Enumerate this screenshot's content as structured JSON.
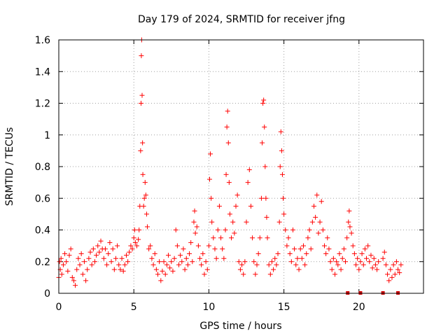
{
  "chart_data": {
    "type": "scatter",
    "title": "Day 179 of 2024, SRMTID for receiver jfng",
    "xlabel": "GPS time / hours",
    "ylabel": "SRMTID / TECUs",
    "xlim": [
      0,
      24.3
    ],
    "ylim": [
      0,
      1.6
    ],
    "grid": true,
    "marker": "plus",
    "color": "#ff0000",
    "xticks": [
      "0",
      "5",
      "10",
      "15",
      "20"
    ],
    "xtick_values": [
      0,
      5,
      10,
      15,
      20
    ],
    "yticks": [
      "0",
      "0.2",
      "0.4",
      "0.6",
      "0.8",
      "1",
      "1.2",
      "1.4",
      "1.6"
    ],
    "ytick_values": [
      0,
      0.2,
      0.4,
      0.6,
      0.8,
      1.0,
      1.2,
      1.4,
      1.6
    ],
    "baseline_markers_x": [
      19.25,
      20.1,
      21.6,
      22.6
    ],
    "series": [
      {
        "name": "SRMTID",
        "points": [
          [
            0.0,
            0.1
          ],
          [
            0.05,
            0.2
          ],
          [
            0.1,
            0.15
          ],
          [
            0.15,
            0.22
          ],
          [
            0.2,
            0.12
          ],
          [
            0.3,
            0.18
          ],
          [
            0.4,
            0.25
          ],
          [
            0.5,
            0.2
          ],
          [
            0.6,
            0.14
          ],
          [
            0.7,
            0.24
          ],
          [
            0.8,
            0.28
          ],
          [
            0.9,
            0.1
          ],
          [
            1.0,
            0.08
          ],
          [
            1.1,
            0.05
          ],
          [
            1.2,
            0.15
          ],
          [
            1.3,
            0.22
          ],
          [
            1.4,
            0.18
          ],
          [
            1.5,
            0.25
          ],
          [
            1.6,
            0.12
          ],
          [
            1.7,
            0.2
          ],
          [
            1.8,
            0.08
          ],
          [
            1.9,
            0.15
          ],
          [
            2.0,
            0.22
          ],
          [
            2.1,
            0.26
          ],
          [
            2.2,
            0.18
          ],
          [
            2.3,
            0.28
          ],
          [
            2.4,
            0.2
          ],
          [
            2.5,
            0.24
          ],
          [
            2.6,
            0.3
          ],
          [
            2.7,
            0.26
          ],
          [
            2.8,
            0.33
          ],
          [
            2.9,
            0.28
          ],
          [
            3.0,
            0.22
          ],
          [
            3.1,
            0.28
          ],
          [
            3.2,
            0.18
          ],
          [
            3.3,
            0.25
          ],
          [
            3.4,
            0.32
          ],
          [
            3.5,
            0.2
          ],
          [
            3.6,
            0.28
          ],
          [
            3.7,
            0.15
          ],
          [
            3.8,
            0.22
          ],
          [
            3.9,
            0.3
          ],
          [
            4.0,
            0.18
          ],
          [
            4.1,
            0.15
          ],
          [
            4.2,
            0.22
          ],
          [
            4.3,
            0.14
          ],
          [
            4.4,
            0.18
          ],
          [
            4.5,
            0.24
          ],
          [
            4.6,
            0.2
          ],
          [
            4.7,
            0.26
          ],
          [
            4.8,
            0.3
          ],
          [
            4.9,
            0.28
          ],
          [
            5.0,
            0.35
          ],
          [
            5.05,
            0.4
          ],
          [
            5.1,
            0.32
          ],
          [
            5.2,
            0.3
          ],
          [
            5.3,
            0.34
          ],
          [
            5.35,
            0.4
          ],
          [
            5.4,
            0.55
          ],
          [
            5.45,
            0.9
          ],
          [
            5.48,
            1.2
          ],
          [
            5.5,
            1.5
          ],
          [
            5.52,
            1.6
          ],
          [
            5.55,
            1.25
          ],
          [
            5.58,
            0.95
          ],
          [
            5.6,
            0.75
          ],
          [
            5.65,
            0.55
          ],
          [
            5.7,
            0.6
          ],
          [
            5.75,
            0.7
          ],
          [
            5.8,
            0.62
          ],
          [
            5.85,
            0.5
          ],
          [
            5.9,
            0.42
          ],
          [
            6.0,
            0.28
          ],
          [
            6.1,
            0.3
          ],
          [
            6.2,
            0.22
          ],
          [
            6.3,
            0.18
          ],
          [
            6.4,
            0.25
          ],
          [
            6.5,
            0.15
          ],
          [
            6.6,
            0.12
          ],
          [
            6.7,
            0.2
          ],
          [
            6.8,
            0.08
          ],
          [
            6.9,
            0.14
          ],
          [
            7.0,
            0.2
          ],
          [
            7.1,
            0.12
          ],
          [
            7.2,
            0.18
          ],
          [
            7.3,
            0.24
          ],
          [
            7.4,
            0.16
          ],
          [
            7.5,
            0.2
          ],
          [
            7.6,
            0.14
          ],
          [
            7.7,
            0.22
          ],
          [
            7.8,
            0.4
          ],
          [
            7.9,
            0.3
          ],
          [
            8.0,
            0.18
          ],
          [
            8.1,
            0.24
          ],
          [
            8.2,
            0.2
          ],
          [
            8.3,
            0.28
          ],
          [
            8.4,
            0.15
          ],
          [
            8.5,
            0.22
          ],
          [
            8.6,
            0.18
          ],
          [
            8.7,
            0.25
          ],
          [
            8.8,
            0.32
          ],
          [
            8.9,
            0.2
          ],
          [
            9.0,
            0.45
          ],
          [
            9.05,
            0.52
          ],
          [
            9.1,
            0.38
          ],
          [
            9.2,
            0.42
          ],
          [
            9.3,
            0.3
          ],
          [
            9.4,
            0.22
          ],
          [
            9.5,
            0.18
          ],
          [
            9.6,
            0.25
          ],
          [
            9.7,
            0.12
          ],
          [
            9.8,
            0.2
          ],
          [
            9.9,
            0.15
          ],
          [
            10.0,
            0.3
          ],
          [
            10.05,
            0.72
          ],
          [
            10.1,
            0.88
          ],
          [
            10.15,
            0.6
          ],
          [
            10.2,
            0.45
          ],
          [
            10.3,
            0.35
          ],
          [
            10.4,
            0.28
          ],
          [
            10.5,
            0.22
          ],
          [
            10.6,
            0.4
          ],
          [
            10.7,
            0.55
          ],
          [
            10.8,
            0.35
          ],
          [
            10.9,
            0.28
          ],
          [
            11.0,
            0.22
          ],
          [
            11.1,
            0.4
          ],
          [
            11.15,
            0.75
          ],
          [
            11.2,
            1.05
          ],
          [
            11.25,
            1.15
          ],
          [
            11.3,
            0.95
          ],
          [
            11.35,
            0.7
          ],
          [
            11.4,
            0.5
          ],
          [
            11.5,
            0.35
          ],
          [
            11.6,
            0.45
          ],
          [
            11.7,
            0.38
          ],
          [
            11.8,
            0.55
          ],
          [
            11.9,
            0.62
          ],
          [
            12.0,
            0.2
          ],
          [
            12.1,
            0.15
          ],
          [
            12.2,
            0.18
          ],
          [
            12.3,
            0.12
          ],
          [
            12.4,
            0.2
          ],
          [
            12.5,
            0.45
          ],
          [
            12.6,
            0.7
          ],
          [
            12.7,
            0.78
          ],
          [
            12.8,
            0.55
          ],
          [
            12.9,
            0.35
          ],
          [
            13.0,
            0.2
          ],
          [
            13.1,
            0.12
          ],
          [
            13.2,
            0.18
          ],
          [
            13.3,
            0.25
          ],
          [
            13.4,
            0.35
          ],
          [
            13.5,
            0.6
          ],
          [
            13.55,
            0.95
          ],
          [
            13.6,
            1.2
          ],
          [
            13.65,
            1.22
          ],
          [
            13.7,
            1.05
          ],
          [
            13.75,
            0.8
          ],
          [
            13.8,
            0.6
          ],
          [
            13.85,
            0.48
          ],
          [
            13.9,
            0.35
          ],
          [
            14.0,
            0.18
          ],
          [
            14.1,
            0.12
          ],
          [
            14.2,
            0.2
          ],
          [
            14.3,
            0.15
          ],
          [
            14.4,
            0.22
          ],
          [
            14.5,
            0.18
          ],
          [
            14.6,
            0.25
          ],
          [
            14.7,
            0.45
          ],
          [
            14.75,
            0.8
          ],
          [
            14.8,
            1.02
          ],
          [
            14.85,
            0.9
          ],
          [
            14.9,
            0.75
          ],
          [
            14.95,
            0.6
          ],
          [
            15.0,
            0.5
          ],
          [
            15.1,
            0.4
          ],
          [
            15.2,
            0.3
          ],
          [
            15.3,
            0.35
          ],
          [
            15.4,
            0.25
          ],
          [
            15.5,
            0.2
          ],
          [
            15.6,
            0.4
          ],
          [
            15.7,
            0.28
          ],
          [
            15.8,
            0.18
          ],
          [
            15.9,
            0.22
          ],
          [
            16.0,
            0.15
          ],
          [
            16.1,
            0.28
          ],
          [
            16.2,
            0.22
          ],
          [
            16.3,
            0.3
          ],
          [
            16.4,
            0.18
          ],
          [
            16.5,
            0.25
          ],
          [
            16.6,
            0.35
          ],
          [
            16.7,
            0.4
          ],
          [
            16.8,
            0.28
          ],
          [
            16.9,
            0.45
          ],
          [
            17.0,
            0.55
          ],
          [
            17.1,
            0.48
          ],
          [
            17.2,
            0.62
          ],
          [
            17.3,
            0.38
          ],
          [
            17.4,
            0.45
          ],
          [
            17.5,
            0.58
          ],
          [
            17.6,
            0.4
          ],
          [
            17.7,
            0.3
          ],
          [
            17.8,
            0.25
          ],
          [
            17.9,
            0.35
          ],
          [
            18.0,
            0.28
          ],
          [
            18.1,
            0.2
          ],
          [
            18.2,
            0.15
          ],
          [
            18.3,
            0.22
          ],
          [
            18.4,
            0.12
          ],
          [
            18.5,
            0.2
          ],
          [
            18.6,
            0.18
          ],
          [
            18.7,
            0.25
          ],
          [
            18.8,
            0.15
          ],
          [
            18.9,
            0.22
          ],
          [
            19.0,
            0.28
          ],
          [
            19.1,
            0.2
          ],
          [
            19.2,
            0.35
          ],
          [
            19.3,
            0.45
          ],
          [
            19.35,
            0.52
          ],
          [
            19.4,
            0.42
          ],
          [
            19.5,
            0.38
          ],
          [
            19.6,
            0.3
          ],
          [
            19.7,
            0.25
          ],
          [
            19.8,
            0.18
          ],
          [
            19.9,
            0.22
          ],
          [
            20.0,
            0.15
          ],
          [
            20.1,
            0.2
          ],
          [
            20.2,
            0.25
          ],
          [
            20.3,
            0.18
          ],
          [
            20.4,
            0.28
          ],
          [
            20.5,
            0.22
          ],
          [
            20.6,
            0.3
          ],
          [
            20.7,
            0.2
          ],
          [
            20.8,
            0.24
          ],
          [
            20.9,
            0.16
          ],
          [
            21.0,
            0.22
          ],
          [
            21.1,
            0.18
          ],
          [
            21.2,
            0.15
          ],
          [
            21.3,
            0.2
          ],
          [
            21.6,
            0.22
          ],
          [
            21.7,
            0.26
          ],
          [
            21.8,
            0.18
          ],
          [
            21.9,
            0.12
          ],
          [
            22.0,
            0.08
          ],
          [
            22.1,
            0.15
          ],
          [
            22.2,
            0.1
          ],
          [
            22.3,
            0.18
          ],
          [
            22.4,
            0.12
          ],
          [
            22.5,
            0.2
          ],
          [
            22.6,
            0.15
          ],
          [
            22.7,
            0.13
          ],
          [
            22.8,
            0.18
          ]
        ]
      }
    ]
  }
}
